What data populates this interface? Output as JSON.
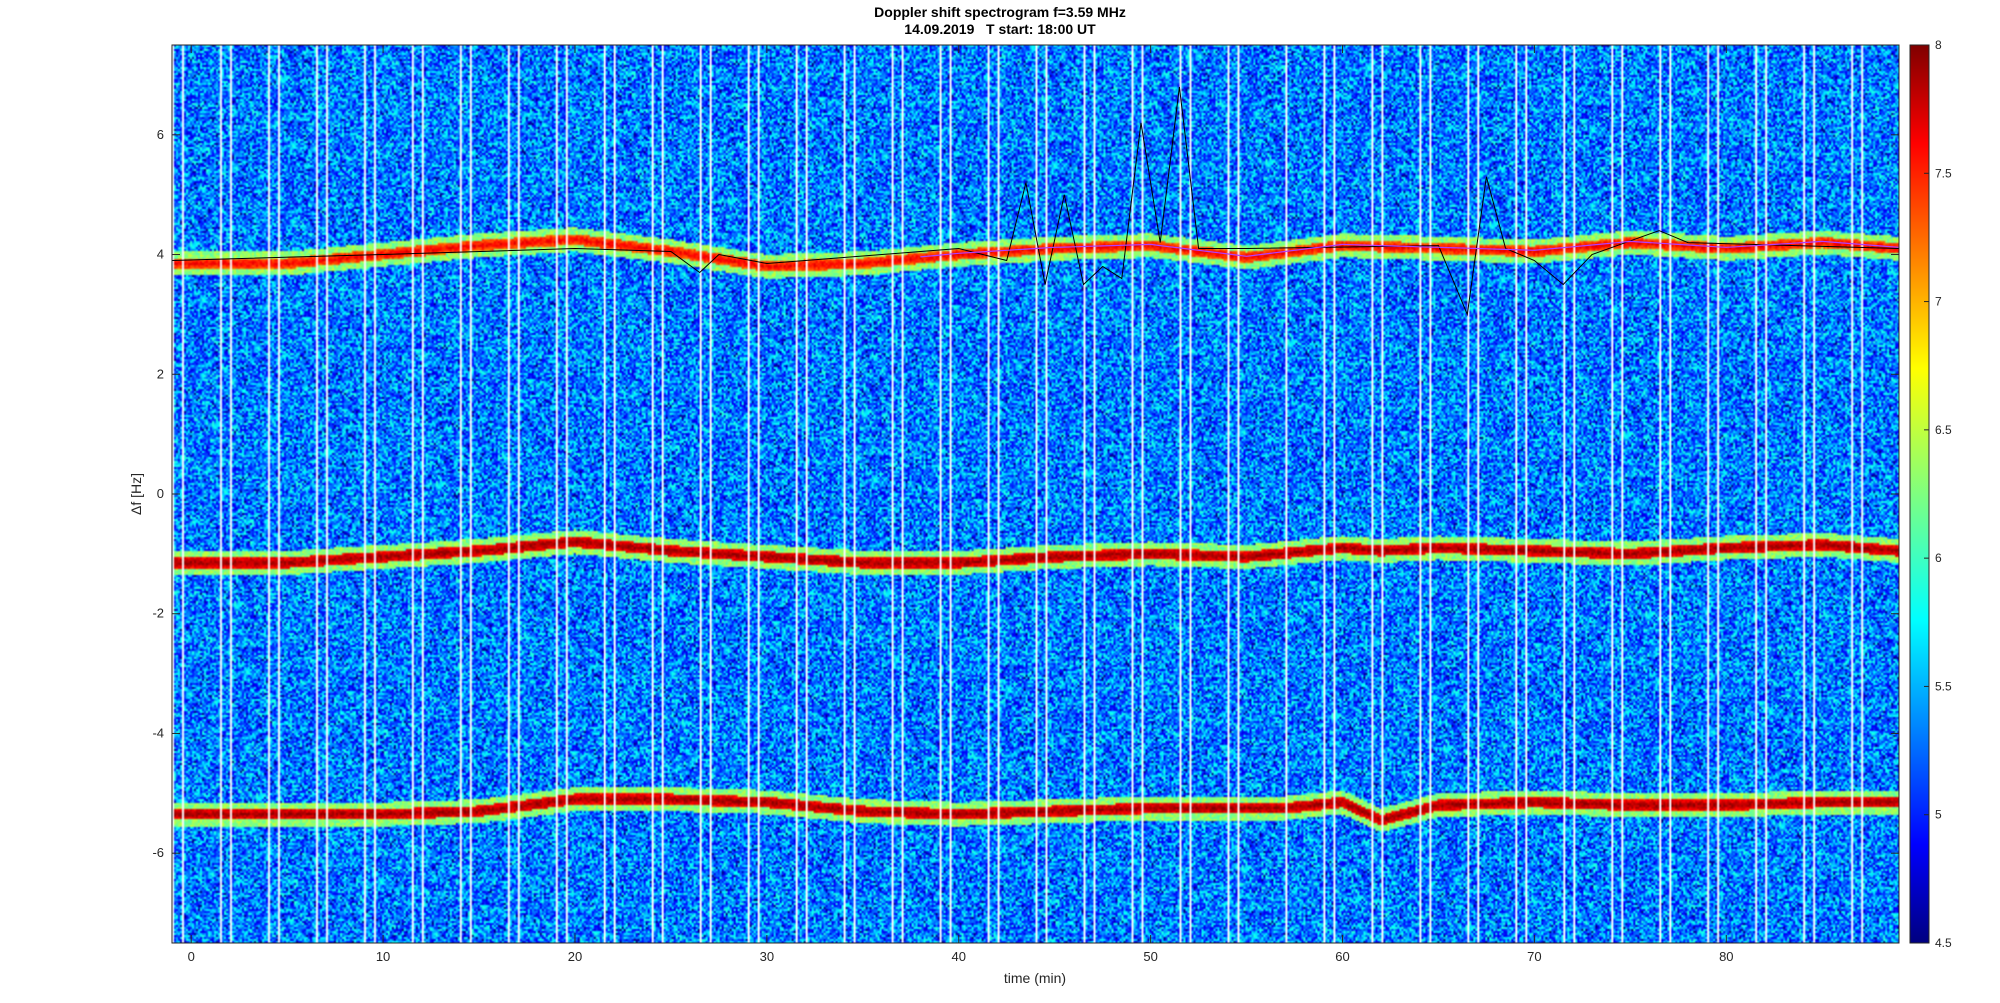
{
  "chart_data": {
    "type": "heatmap",
    "title": "Doppler shift spectrogram f=3.59 MHz",
    "subtitle": "14.09.2019   T start: 18:00 UT",
    "xlabel": "time (min)",
    "ylabel": "Δf [Hz]",
    "xlim": [
      -1,
      89
    ],
    "ylim": [
      -7.5,
      7.5
    ],
    "xticks": [
      0,
      10,
      20,
      30,
      40,
      50,
      60,
      70,
      80
    ],
    "yticks": [
      -6,
      -4,
      -2,
      0,
      2,
      4,
      6
    ],
    "colormap": "jet",
    "clim": [
      4.5,
      8
    ],
    "colorbar_ticks": [
      4.5,
      5,
      5.5,
      6,
      6.5,
      7,
      7.5,
      8
    ],
    "background_level": 5.4,
    "ridges": [
      {
        "t": [
          -1,
          5,
          10,
          15,
          20,
          25,
          30,
          35,
          40,
          45,
          50,
          55,
          60,
          65,
          70,
          75,
          80,
          85,
          89
        ],
        "df": [
          3.85,
          3.85,
          4.0,
          4.15,
          4.25,
          4.05,
          3.8,
          3.85,
          4.0,
          4.1,
          4.15,
          3.95,
          4.15,
          4.1,
          4.05,
          4.2,
          4.1,
          4.2,
          4.1
        ],
        "level": 7.6
      },
      {
        "t": [
          -1,
          5,
          10,
          15,
          20,
          25,
          30,
          35,
          40,
          45,
          50,
          55,
          60,
          62,
          65,
          70,
          75,
          80,
          85,
          89
        ],
        "df": [
          -1.15,
          -1.15,
          -1.05,
          -0.95,
          -0.8,
          -0.95,
          -1.05,
          -1.15,
          -1.15,
          -1.05,
          -1.0,
          -1.05,
          -0.9,
          -0.95,
          -0.9,
          -0.95,
          -1.0,
          -0.9,
          -0.85,
          -0.95
        ],
        "level": 7.9
      },
      {
        "t": [
          -1,
          5,
          10,
          15,
          20,
          25,
          30,
          35,
          40,
          45,
          50,
          55,
          57,
          60,
          62,
          65,
          70,
          75,
          80,
          85,
          89
        ],
        "df": [
          -5.35,
          -5.35,
          -5.35,
          -5.3,
          -5.1,
          -5.1,
          -5.15,
          -5.3,
          -5.35,
          -5.3,
          -5.25,
          -5.25,
          -5.25,
          -5.15,
          -5.45,
          -5.2,
          -5.15,
          -5.2,
          -5.2,
          -5.15,
          -5.15
        ],
        "level": 7.9
      }
    ],
    "trace": {
      "t": [
        -1,
        10,
        20,
        25,
        26.5,
        27.5,
        30,
        40,
        42.5,
        43.5,
        44.5,
        45.5,
        46.5,
        47.5,
        48.5,
        49.5,
        50.5,
        51.5,
        52.5,
        55,
        65,
        66.5,
        67.5,
        68.5,
        70,
        71.5,
        73,
        76.5,
        78,
        89
      ],
      "df": [
        3.9,
        4.0,
        4.1,
        4.05,
        3.7,
        4.0,
        3.85,
        4.1,
        3.9,
        5.2,
        3.5,
        5.0,
        3.5,
        3.8,
        3.6,
        6.2,
        4.2,
        6.8,
        4.1,
        4.1,
        4.15,
        3.0,
        5.3,
        4.1,
        3.9,
        3.5,
        4.0,
        4.4,
        4.2,
        4.1
      ],
      "color": "#000000"
    },
    "purple_trace_color": "#b040ff"
  }
}
